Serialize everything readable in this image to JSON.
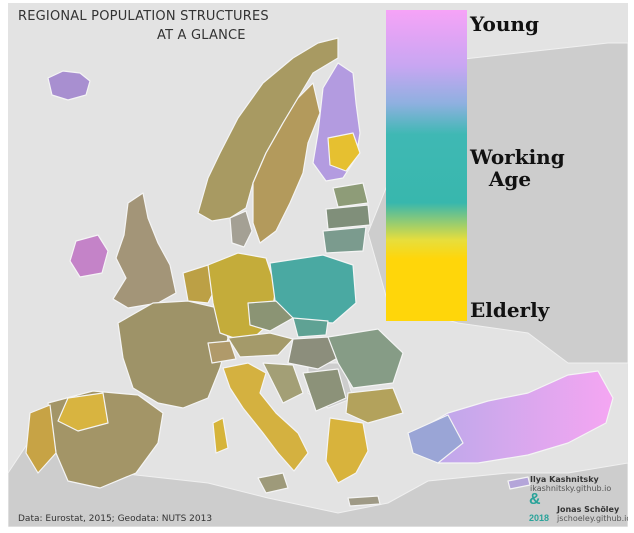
{
  "title": {
    "line1": "REGIONAL POPULATION STRUCTURES",
    "line2": "AT A GLANCE"
  },
  "legend": {
    "young": "Young",
    "working_line1": "Working",
    "working_line2": "Age",
    "elderly": "Elderly",
    "colors": {
      "young": "#f4a4f6",
      "working": "#3db7b2",
      "elderly": "#ffd60a"
    }
  },
  "source": "Data: Eurostat, 2015; Geodata: NUTS 2013",
  "credits": {
    "author1_name": "Ilya Kashnitsky",
    "author1_url": "ikashnitsky.github.io",
    "ampersand": "&",
    "year": "2018",
    "author2_name": "Jonas Schöley",
    "author2_url": "jschoeley.github.io"
  },
  "region_colors": {
    "sea": "#e3e3e3",
    "non_eu_land": "#cdcdcd",
    "borders": "#f2f2f2"
  }
}
